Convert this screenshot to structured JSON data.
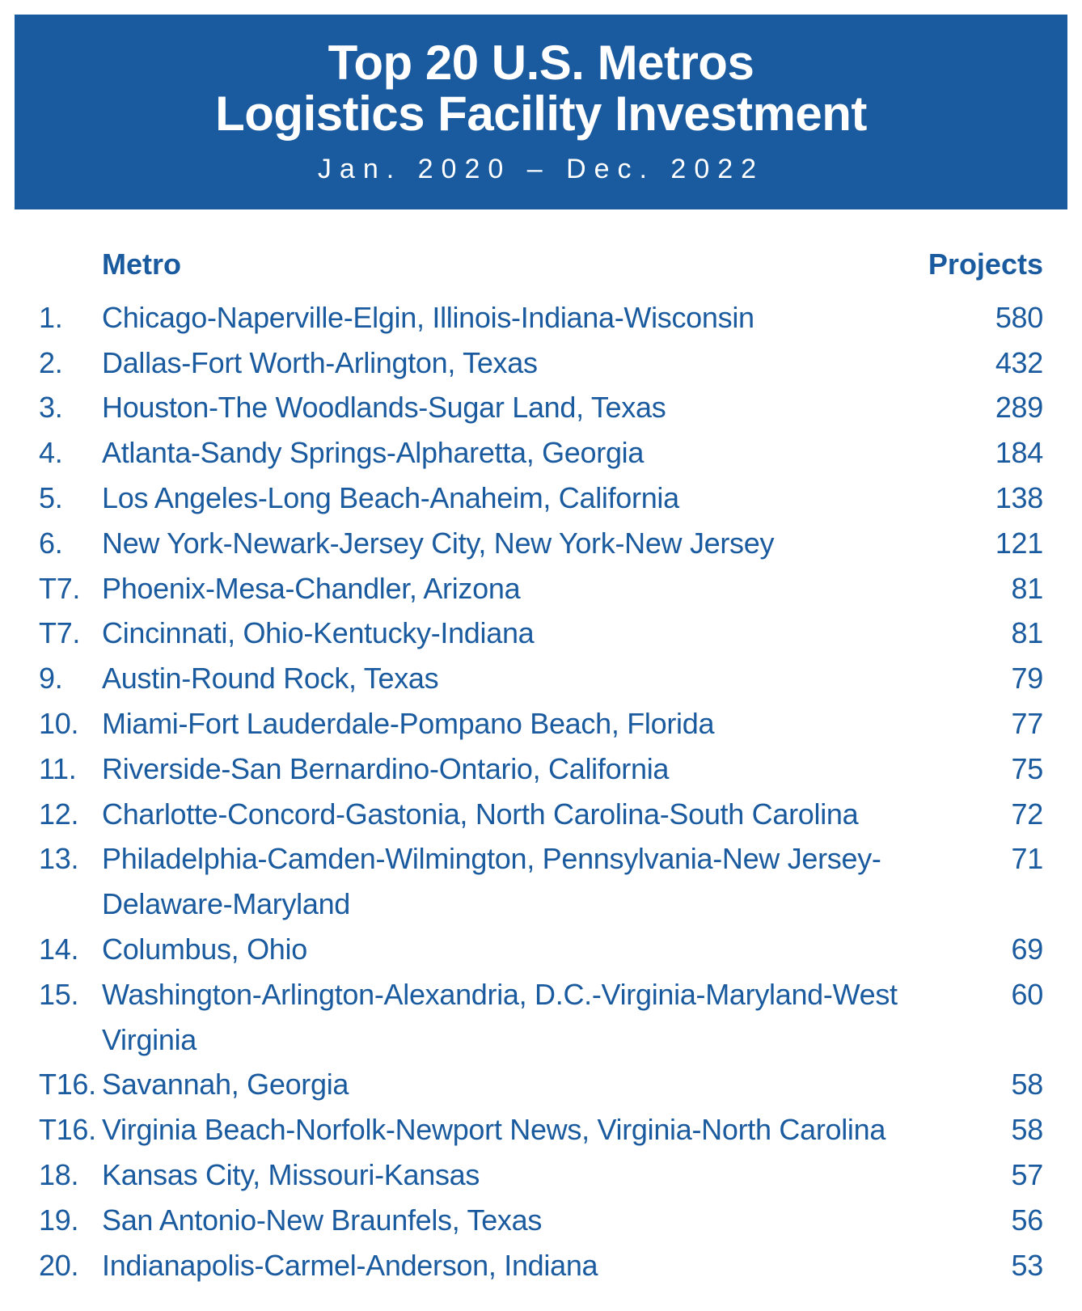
{
  "header": {
    "title_line1": "Top 20 U.S. Metros",
    "title_line2": "Logistics Facility Investment",
    "subtitle": "Jan. 2020 – Dec. 2022"
  },
  "columns": {
    "metro": "Metro",
    "projects": "Projects"
  },
  "rows": [
    {
      "rank": "1.",
      "metro": "Chicago-Naperville-Elgin, Illinois-Indiana-Wisconsin",
      "projects": "580"
    },
    {
      "rank": "2.",
      "metro": "Dallas-Fort Worth-Arlington, Texas",
      "projects": "432"
    },
    {
      "rank": "3.",
      "metro": "Houston-The Woodlands-Sugar Land, Texas",
      "projects": "289"
    },
    {
      "rank": "4.",
      "metro": "Atlanta-Sandy Springs-Alpharetta, Georgia",
      "projects": "184"
    },
    {
      "rank": "5.",
      "metro": "Los Angeles-Long Beach-Anaheim, California",
      "projects": "138"
    },
    {
      "rank": "6.",
      "metro": "New York-Newark-Jersey City, New York-New Jersey",
      "projects": "121"
    },
    {
      "rank": "T7.",
      "metro": "Phoenix-Mesa-Chandler, Arizona",
      "projects": "81"
    },
    {
      "rank": "T7.",
      "metro": "Cincinnati, Ohio-Kentucky-Indiana",
      "projects": "81"
    },
    {
      "rank": "9.",
      "metro": "Austin-Round Rock, Texas",
      "projects": "79"
    },
    {
      "rank": "10.",
      "metro": "Miami-Fort Lauderdale-Pompano Beach, Florida",
      "projects": "77"
    },
    {
      "rank": "11.",
      "metro": "Riverside-San Bernardino-Ontario, California",
      "projects": "75"
    },
    {
      "rank": "12.",
      "metro": "Charlotte-Concord-Gastonia, North Carolina-South Carolina",
      "projects": "72"
    },
    {
      "rank": "13.",
      "metro": "Philadelphia-Camden-Wilmington, Pennsylvania-New Jersey-Delaware-Maryland",
      "projects": "71"
    },
    {
      "rank": "14.",
      "metro": "Columbus, Ohio",
      "projects": "69"
    },
    {
      "rank": "15.",
      "metro": "Washington-Arlington-Alexandria, D.C.-Virginia-Maryland-West Virginia",
      "projects": "60"
    },
    {
      "rank": "T16.",
      "metro": "Savannah, Georgia",
      "projects": "58"
    },
    {
      "rank": "T16.",
      "metro": "Virginia Beach-Norfolk-Newport News, Virginia-North Carolina",
      "projects": "58"
    },
    {
      "rank": "18.",
      "metro": "Kansas City, Missouri-Kansas",
      "projects": "57"
    },
    {
      "rank": "19.",
      "metro": "San Antonio-New Braunfels, Texas",
      "projects": "56"
    },
    {
      "rank": "20.",
      "metro": "Indianapolis-Carmel-Anderson, Indiana",
      "projects": "53"
    }
  ],
  "colors": {
    "header_bg": "#1a5a9e",
    "header_text": "#ffffff",
    "body_text": "#1a5a9e",
    "page_bg": "#ffffff"
  }
}
